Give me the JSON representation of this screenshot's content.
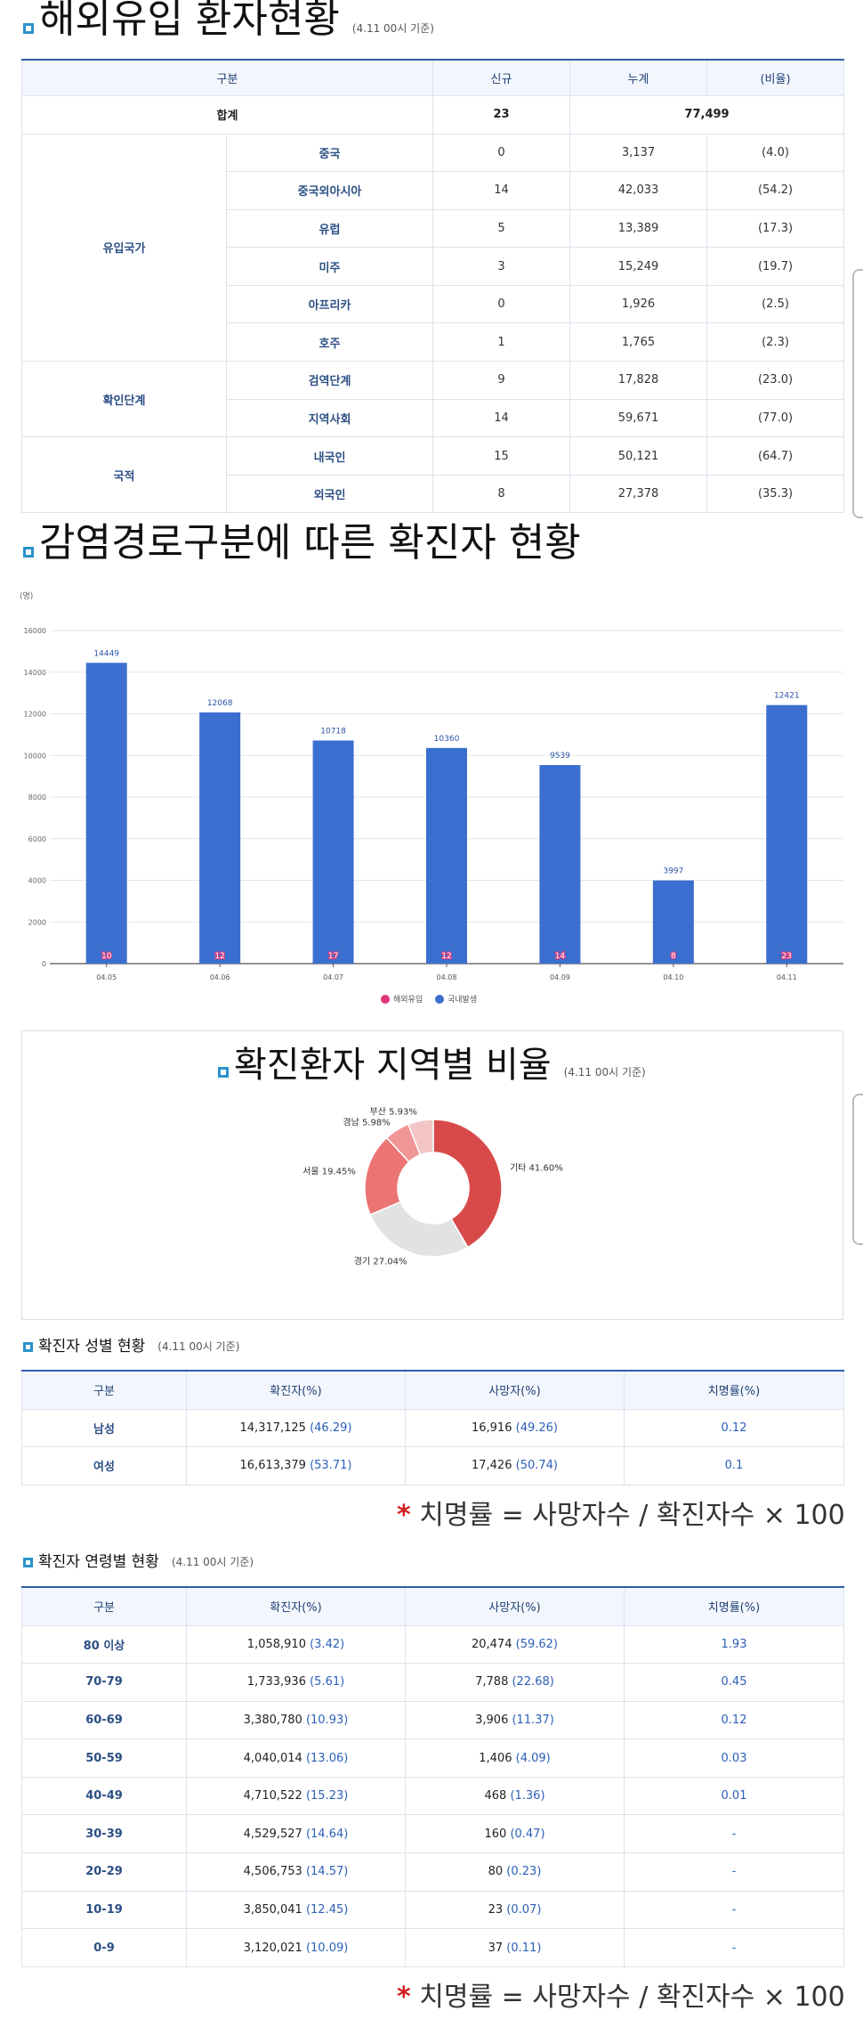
{
  "import": {
    "title": "해외유입 환자현황",
    "date": "(4.11 00시 기준)",
    "headers": [
      "구분",
      "신규",
      "누계",
      "(비율)"
    ],
    "total": {
      "label": "합계",
      "new": "23",
      "cumulative": "77,499"
    },
    "groups": [
      {
        "name": "유입국가",
        "rows": [
          {
            "label": "중국",
            "new": "0",
            "cum": "3,137",
            "ratio": "(4.0)"
          },
          {
            "label": "중국외아시아",
            "new": "14",
            "cum": "42,033",
            "ratio": "(54.2)"
          },
          {
            "label": "유럽",
            "new": "5",
            "cum": "13,389",
            "ratio": "(17.3)"
          },
          {
            "label": "미주",
            "new": "3",
            "cum": "15,249",
            "ratio": "(19.7)"
          },
          {
            "label": "아프리카",
            "new": "0",
            "cum": "1,926",
            "ratio": "(2.5)"
          },
          {
            "label": "호주",
            "new": "1",
            "cum": "1,765",
            "ratio": "(2.3)"
          }
        ]
      },
      {
        "name": "확인단계",
        "rows": [
          {
            "label": "검역단계",
            "new": "9",
            "cum": "17,828",
            "ratio": "(23.0)"
          },
          {
            "label": "지역사회",
            "new": "14",
            "cum": "59,671",
            "ratio": "(77.0)"
          }
        ]
      },
      {
        "name": "국적",
        "rows": [
          {
            "label": "내국인",
            "new": "15",
            "cum": "50,121",
            "ratio": "(64.7)"
          },
          {
            "label": "외국인",
            "new": "8",
            "cum": "27,378",
            "ratio": "(35.3)"
          }
        ]
      }
    ]
  },
  "route": {
    "title": "감염경로구분에 따른 확진자 현황"
  },
  "region": {
    "title": "확진환자 지역별 비율",
    "date": "(4.11 00시 기준)"
  },
  "gender": {
    "title": "확진자 성별 현황",
    "date": "(4.11 00시 기준)",
    "headers": [
      "구분",
      "확진자(%)",
      "사망자(%)",
      "치명률(%)"
    ],
    "rows": [
      {
        "label": "남성",
        "conf": "14,317,125",
        "conf_pct": "(46.29)",
        "death": "16,916",
        "death_pct": "(49.26)",
        "cfr": "0.12"
      },
      {
        "label": "여성",
        "conf": "16,613,379",
        "conf_pct": "(53.71)",
        "death": "17,426",
        "death_pct": "(50.74)",
        "cfr": "0.1"
      }
    ]
  },
  "age": {
    "title": "확진자 연령별 현황",
    "date": "(4.11 00시 기준)",
    "headers": [
      "구분",
      "확진자(%)",
      "사망자(%)",
      "치명률(%)"
    ],
    "rows": [
      {
        "label": "80 이상",
        "conf": "1,058,910",
        "conf_pct": "(3.42)",
        "death": "20,474",
        "death_pct": "(59.62)",
        "cfr": "1.93"
      },
      {
        "label": "70-79",
        "conf": "1,733,936",
        "conf_pct": "(5.61)",
        "death": "7,788",
        "death_pct": "(22.68)",
        "cfr": "0.45"
      },
      {
        "label": "60-69",
        "conf": "3,380,780",
        "conf_pct": "(10.93)",
        "death": "3,906",
        "death_pct": "(11.37)",
        "cfr": "0.12"
      },
      {
        "label": "50-59",
        "conf": "4,040,014",
        "conf_pct": "(13.06)",
        "death": "1,406",
        "death_pct": "(4.09)",
        "cfr": "0.03"
      },
      {
        "label": "40-49",
        "conf": "4,710,522",
        "conf_pct": "(15.23)",
        "death": "468",
        "death_pct": "(1.36)",
        "cfr": "0.01"
      },
      {
        "label": "30-39",
        "conf": "4,529,527",
        "conf_pct": "(14.64)",
        "death": "160",
        "death_pct": "(0.47)",
        "cfr": "-"
      },
      {
        "label": "20-29",
        "conf": "4,506,753",
        "conf_pct": "(14.57)",
        "death": "80",
        "death_pct": "(0.23)",
        "cfr": "-"
      },
      {
        "label": "10-19",
        "conf": "3,850,041",
        "conf_pct": "(12.45)",
        "death": "23",
        "death_pct": "(0.07)",
        "cfr": "-"
      },
      {
        "label": "0-9",
        "conf": "3,120,021",
        "conf_pct": "(10.09)",
        "death": "37",
        "death_pct": "(0.11)",
        "cfr": "-"
      }
    ]
  },
  "formula": {
    "star": "*",
    "text": "치명률 = 사망자수 / 확진자수 × 100"
  },
  "colors": {
    "bar": "#3a6fcf",
    "import_dot": "#e0367a",
    "accent": "#2f5fa8",
    "icon": "#2a93c9"
  },
  "chart_data": [
    {
      "type": "bar",
      "ylabel": "(명)",
      "ylim": [
        0,
        16000
      ],
      "yticks": [
        0,
        2000,
        4000,
        6000,
        8000,
        10000,
        12000,
        14000,
        16000
      ],
      "grid": true,
      "legend_placement": "bottom-center",
      "categories": [
        "04.05",
        "04.06",
        "04.07",
        "04.08",
        "04.09",
        "04.10",
        "04.11"
      ],
      "series": [
        {
          "name": "해외유입",
          "values": [
            10,
            12,
            17,
            12,
            14,
            8,
            23
          ],
          "color": "#e0367a"
        },
        {
          "name": "국내발생",
          "values": [
            14449,
            12068,
            10718,
            10360,
            9539,
            3997,
            12421
          ],
          "color": "#3a6fcf"
        }
      ]
    },
    {
      "type": "pie",
      "donut": true,
      "slices": [
        {
          "label": "기타",
          "value": 41.6,
          "text": "기타 41.60%",
          "color": "#d84a4a"
        },
        {
          "label": "경기",
          "value": 27.04,
          "text": "경기 27.04%",
          "color": "#e2e2e2"
        },
        {
          "label": "서울",
          "value": 19.45,
          "text": "서울 19.45%",
          "color": "#ec7474"
        },
        {
          "label": "경남",
          "value": 5.98,
          "text": "경남 5.98%",
          "color": "#f09696"
        },
        {
          "label": "부산",
          "value": 5.93,
          "text": "부산 5.93%",
          "color": "#f4c5c5"
        }
      ]
    }
  ]
}
